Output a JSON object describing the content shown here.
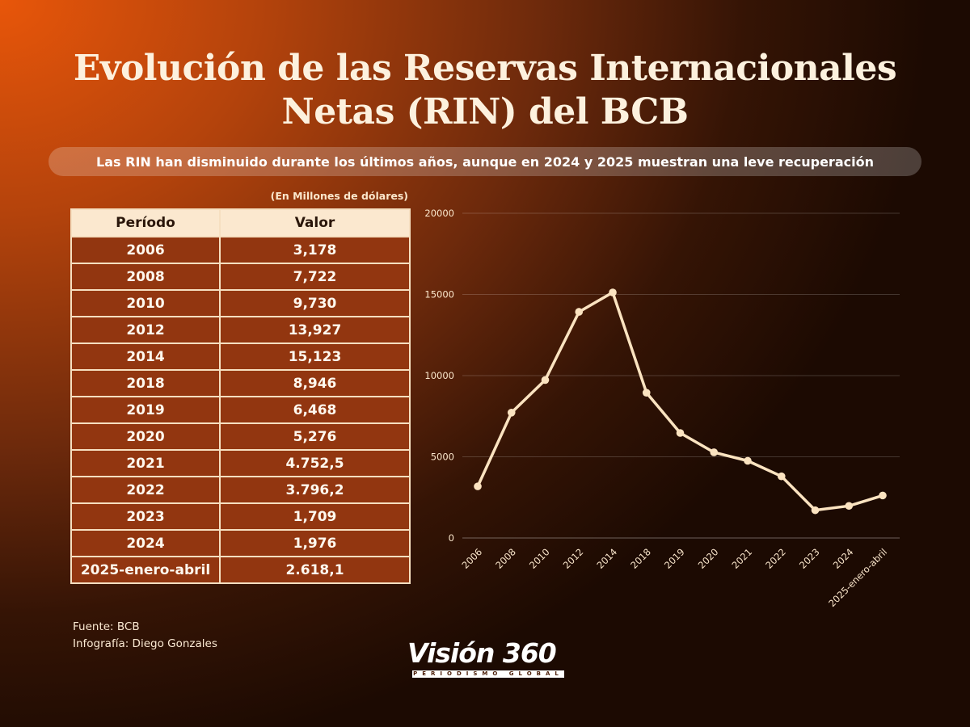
{
  "title": {
    "line1": "Evolución de las Reservas Internacionales",
    "line2": "Netas (RIN) del BCB"
  },
  "subtitle": "Las RIN han disminuido durante los últimos años, aunque en 2024 y 2025 muestran una leve recuperación",
  "unit_note": "(En Millones de dólares)",
  "table": {
    "headers": [
      "Período",
      "Valor"
    ],
    "rows": [
      [
        "2006",
        "3,178"
      ],
      [
        "2008",
        "7,722"
      ],
      [
        "2010",
        "9,730"
      ],
      [
        "2012",
        "13,927"
      ],
      [
        "2014",
        "15,123"
      ],
      [
        "2018",
        "8,946"
      ],
      [
        "2019",
        "6,468"
      ],
      [
        "2020",
        "5,276"
      ],
      [
        "2021",
        "4.752,5"
      ],
      [
        "2022",
        "3.796,2"
      ],
      [
        "2023",
        "1,709"
      ],
      [
        "2024",
        "1,976"
      ],
      [
        "2025-enero-abril",
        "2.618,1"
      ]
    ]
  },
  "credits": {
    "source": "Fuente: BCB",
    "author": "Infografía: Diego Gonzales"
  },
  "logo": {
    "name": "Visión 360",
    "tagline": "PERIODISMO GLOBAL"
  },
  "colors": {
    "line": "#fbe3c0",
    "grid": "rgba(255,255,255,0.18)",
    "axis_text": "#fbe7cc"
  },
  "chart_data": {
    "type": "line",
    "title": "",
    "xlabel": "",
    "ylabel": "",
    "categories": [
      "2006",
      "2008",
      "2010",
      "2012",
      "2014",
      "2018",
      "2019",
      "2020",
      "2021",
      "2022",
      "2023",
      "2024",
      "2025-enero-abril"
    ],
    "values": [
      3178,
      7722,
      9730,
      13927,
      15123,
      8946,
      6468,
      5276,
      4752.5,
      3796.2,
      1709,
      1976,
      2618.1
    ],
    "ylim": [
      0,
      20000
    ],
    "yticks": [
      "0",
      "5000",
      "10000",
      "15000",
      "20000"
    ],
    "grid": true,
    "legend": "none"
  }
}
